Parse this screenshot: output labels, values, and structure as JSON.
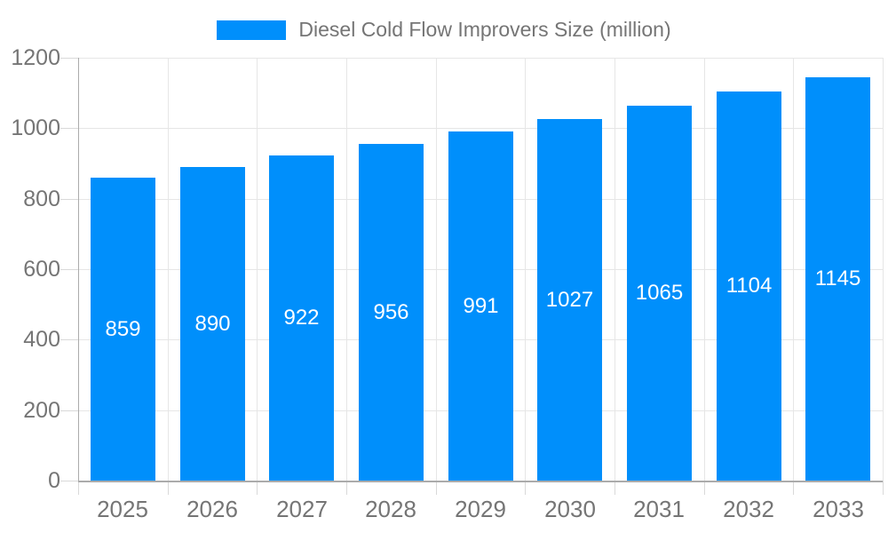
{
  "colors": {
    "bar": "#008FFB",
    "axis": "#ABABAB",
    "grid": "#E6E6E6",
    "tick": "#D9D9D9",
    "axis_label": "#757575",
    "bar_label": "#FFFFFF",
    "background": "#FFFFFF"
  },
  "chart_data": {
    "type": "bar",
    "title": "",
    "legend": {
      "label": "Diesel Cold Flow Improvers Size (million)",
      "color": "#008FFB",
      "position": "top"
    },
    "categories": [
      "2025",
      "2026",
      "2027",
      "2028",
      "2029",
      "2030",
      "2031",
      "2032",
      "2033"
    ],
    "values": [
      859,
      890,
      922,
      956,
      991,
      1027,
      1065,
      1104,
      1145
    ],
    "bar_value_labels": [
      "859",
      "890",
      "922",
      "956",
      "991",
      "1027",
      "1065",
      "1104",
      "1145"
    ],
    "xlabel": "",
    "ylabel": "",
    "ylim": [
      0,
      1200
    ],
    "ytick_step": 200,
    "ytick_labels": [
      "0",
      "200",
      "400",
      "600",
      "800",
      "1000",
      "1200"
    ],
    "grid": "horizontal and vertical, light gray",
    "data_labels": "white, centered inside bars"
  }
}
